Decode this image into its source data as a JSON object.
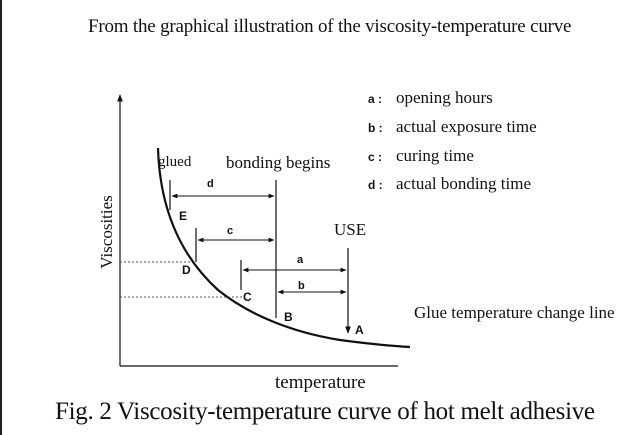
{
  "header": "From the graphical illustration of the viscosity-temperature curve",
  "legend": [
    {
      "key": "a :",
      "text": "opening hours"
    },
    {
      "key": "b :",
      "text": "actual exposure time"
    },
    {
      "key": "c :",
      "text": "curing time"
    },
    {
      "key": "d :",
      "text": "actual bonding time"
    }
  ],
  "labels": {
    "glued": "glued",
    "bonding_begins": "bonding begins",
    "use": "USE",
    "glue_temperature_change_line": "Glue temperature change line"
  },
  "axes": {
    "x": "temperature",
    "y": "Viscosities"
  },
  "points": {
    "A": "A",
    "B": "B",
    "C": "C",
    "D": "D",
    "E": "E"
  },
  "segments": {
    "a": "a",
    "b": "b",
    "c": "c",
    "d": "d"
  },
  "caption": "Fig. 2   Viscosity-temperature curve of hot melt adhesive"
}
